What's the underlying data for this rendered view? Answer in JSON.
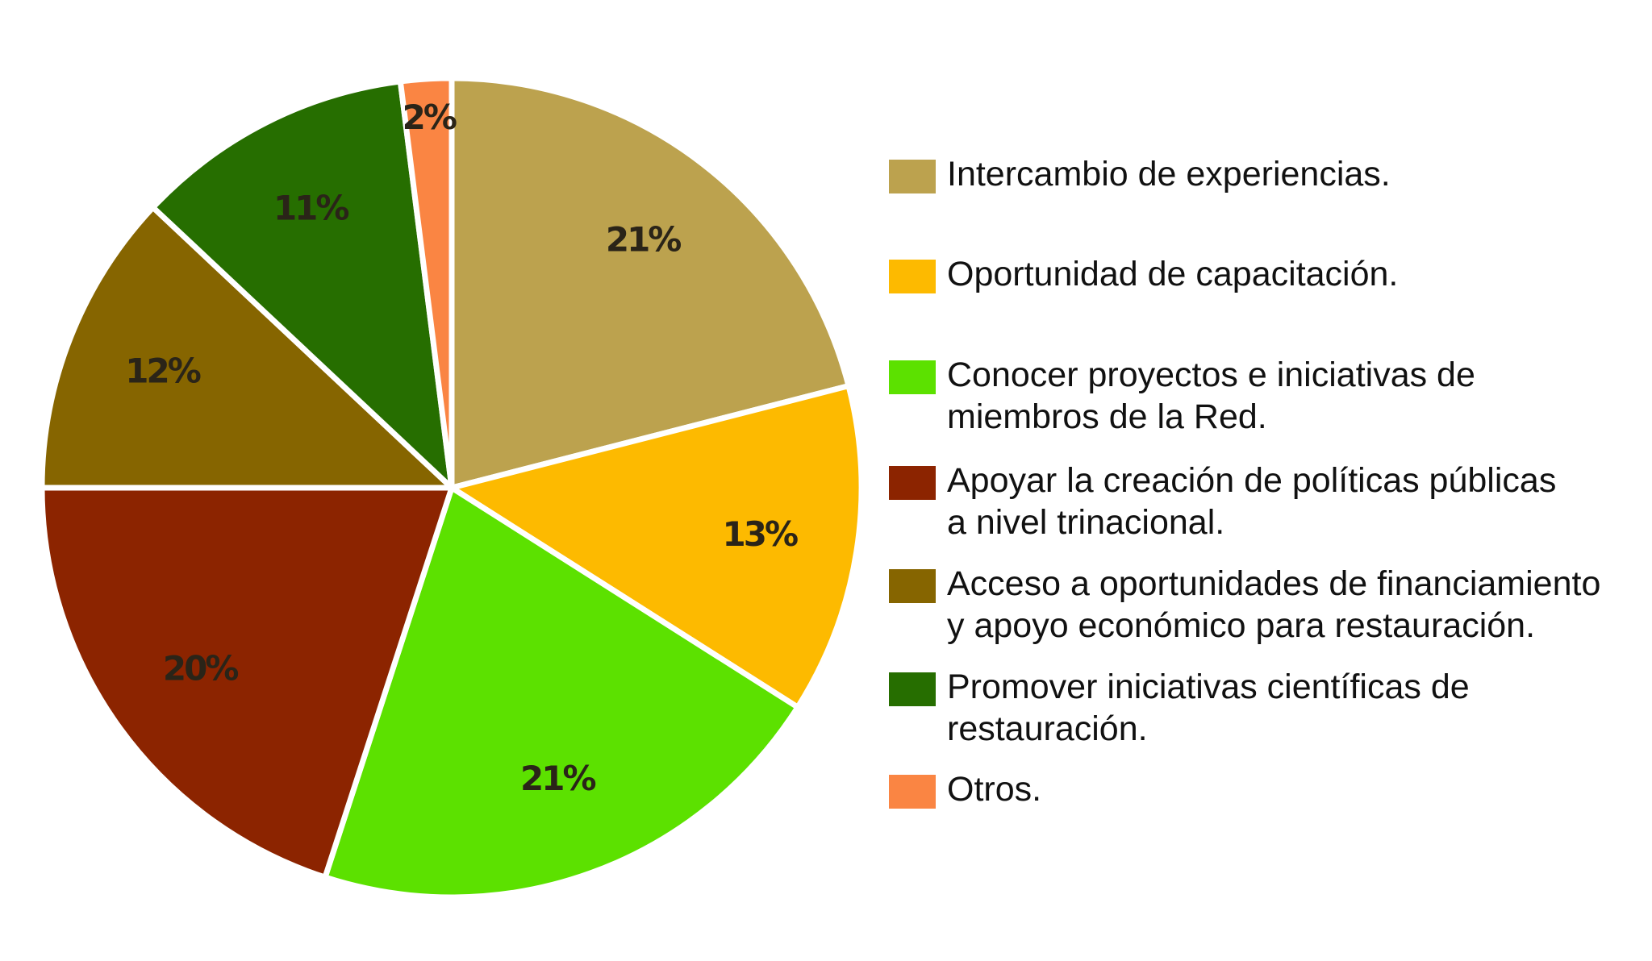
{
  "chart_data": {
    "type": "pie",
    "slices": [
      {
        "label": "Intercambio de experiencias.",
        "value": 21,
        "value_label": "21%",
        "color": "#BCA24E"
      },
      {
        "label": "Oportunidad de capacitación.",
        "value": 13,
        "value_label": "13%",
        "color": "#FDBA00"
      },
      {
        "label": "Conocer proyectos e iniciativas de miembros de la Red.",
        "value": 21,
        "value_label": "21%",
        "color": "#5CE100"
      },
      {
        "label": "Apoyar la creación de políticas públicas a nivel trinacional.",
        "value": 20,
        "value_label": "20%",
        "color": "#8C2400"
      },
      {
        "label": "Acceso a oportunidades de financiamiento y apoyo económico para restauración.",
        "value": 12,
        "value_label": "12%",
        "color": "#866500"
      },
      {
        "label": "Promover iniciativas científicas de restauración.",
        "value": 11,
        "value_label": "11%",
        "color": "#266E00"
      },
      {
        "label": "Otros.",
        "value": 2,
        "value_label": "2%",
        "color": "#FA8543"
      }
    ],
    "start_angle": "top",
    "direction": "clockwise",
    "legend_position": "right"
  },
  "legend": {
    "items": [
      {
        "lines": [
          "Intercambio de experiencias."
        ],
        "color": "#BCA24E"
      },
      {
        "lines": [
          "Oportunidad de capacitación."
        ],
        "color": "#FDBA00"
      },
      {
        "lines": [
          "Conocer proyectos e iniciativas de",
          "miembros de la Red."
        ],
        "color": "#5CE100"
      },
      {
        "lines": [
          "Apoyar la creación de políticas públicas",
          "a nivel trinacional."
        ],
        "color": "#8C2400"
      },
      {
        "lines": [
          "Acceso a oportunidades de financiamiento",
          "y apoyo económico para restauración."
        ],
        "color": "#866500"
      },
      {
        "lines": [
          "Promover iniciativas científicas de",
          "restauración."
        ],
        "color": "#266E00"
      },
      {
        "lines": [
          "Otros."
        ],
        "color": "#FA8543"
      }
    ]
  }
}
